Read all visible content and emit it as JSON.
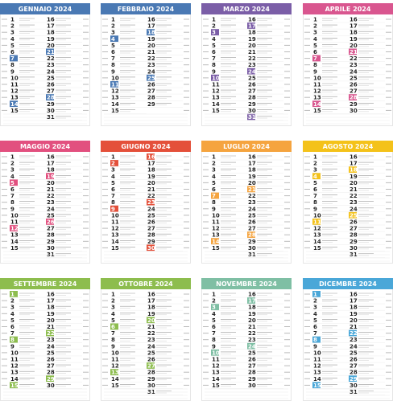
{
  "months": [
    {
      "title": "GENNAIO 2024",
      "color": "#4a79b4",
      "days": [
        1,
        2,
        3,
        4,
        5,
        6,
        7,
        8,
        9,
        10,
        11,
        12,
        13,
        14,
        15,
        16,
        17,
        18,
        19,
        20,
        21,
        22,
        23,
        24,
        25,
        26,
        27,
        28,
        29,
        30,
        31
      ]
    },
    {
      "title": "FEBBRAIO 2024",
      "color": "#4a79b4",
      "days": [
        1,
        2,
        3,
        4,
        5,
        6,
        7,
        8,
        9,
        10,
        11,
        12,
        13,
        14,
        15,
        16,
        17,
        18,
        19,
        20,
        21,
        22,
        23,
        24,
        25,
        26,
        27,
        28,
        29
      ]
    },
    {
      "title": "MARZO 2024",
      "color": "#7b5ea7",
      "days": [
        1,
        2,
        3,
        4,
        5,
        6,
        7,
        8,
        9,
        10,
        11,
        12,
        13,
        14,
        15,
        16,
        17,
        18,
        19,
        20,
        21,
        22,
        23,
        24,
        25,
        26,
        27,
        28,
        29,
        30,
        31
      ]
    },
    {
      "title": "APRILE 2024",
      "color": "#d9568f",
      "days": [
        1,
        2,
        3,
        4,
        5,
        6,
        7,
        8,
        9,
        10,
        11,
        12,
        13,
        14,
        15,
        16,
        17,
        18,
        19,
        20,
        21,
        22,
        23,
        24,
        25,
        26,
        27,
        28,
        29,
        30
      ]
    },
    {
      "title": "MAGGIO 2024",
      "color": "#e2507f",
      "days": [
        1,
        2,
        3,
        4,
        5,
        6,
        7,
        8,
        9,
        10,
        11,
        12,
        13,
        14,
        15,
        16,
        17,
        18,
        19,
        20,
        21,
        22,
        23,
        24,
        25,
        26,
        27,
        28,
        29,
        30,
        31
      ]
    },
    {
      "title": "GIUGNO 2024",
      "color": "#e4503a",
      "days": [
        1,
        2,
        3,
        4,
        5,
        6,
        7,
        8,
        9,
        10,
        11,
        12,
        13,
        14,
        15,
        16,
        17,
        18,
        19,
        20,
        21,
        22,
        23,
        24,
        25,
        26,
        27,
        28,
        29,
        30
      ]
    },
    {
      "title": "LUGLIO 2024",
      "color": "#f5a43f",
      "days": [
        1,
        2,
        3,
        4,
        5,
        6,
        7,
        8,
        9,
        10,
        11,
        12,
        13,
        14,
        15,
        16,
        17,
        18,
        19,
        20,
        21,
        22,
        23,
        24,
        25,
        26,
        27,
        28,
        29,
        30,
        31
      ]
    },
    {
      "title": "AGOSTO 2024",
      "color": "#f4c21a",
      "days": [
        1,
        2,
        3,
        4,
        5,
        6,
        7,
        8,
        9,
        10,
        11,
        12,
        13,
        14,
        15,
        16,
        17,
        18,
        19,
        20,
        21,
        22,
        23,
        24,
        25,
        26,
        27,
        28,
        29,
        30,
        31
      ]
    },
    {
      "title": "SETTEMBRE 2024",
      "color": "#8dbd4e",
      "days": [
        1,
        2,
        3,
        4,
        5,
        6,
        7,
        8,
        9,
        10,
        11,
        12,
        13,
        14,
        15,
        16,
        17,
        18,
        19,
        20,
        21,
        22,
        23,
        24,
        25,
        26,
        27,
        28,
        29,
        30
      ]
    },
    {
      "title": "OTTOBRE 2024",
      "color": "#8dbd4e",
      "days": [
        1,
        2,
        3,
        4,
        5,
        6,
        7,
        8,
        9,
        10,
        11,
        12,
        13,
        14,
        15,
        16,
        17,
        18,
        19,
        20,
        21,
        22,
        23,
        24,
        25,
        26,
        27,
        28,
        29,
        30,
        31
      ]
    },
    {
      "title": "NOVEMBRE 2024",
      "color": "#7fbfa4",
      "days": [
        1,
        2,
        3,
        4,
        5,
        6,
        7,
        8,
        9,
        10,
        11,
        12,
        13,
        14,
        15,
        16,
        17,
        18,
        19,
        20,
        21,
        22,
        23,
        24,
        25,
        26,
        27,
        28,
        29,
        30
      ]
    },
    {
      "title": "DICEMBRE 2024",
      "color": "#4aa7d8",
      "days": [
        1,
        2,
        3,
        4,
        5,
        6,
        7,
        8,
        9,
        10,
        11,
        12,
        13,
        14,
        15,
        16,
        17,
        18,
        19,
        20,
        21,
        22,
        23,
        24,
        25,
        26,
        27,
        28,
        29,
        30,
        31
      ]
    }
  ]
}
